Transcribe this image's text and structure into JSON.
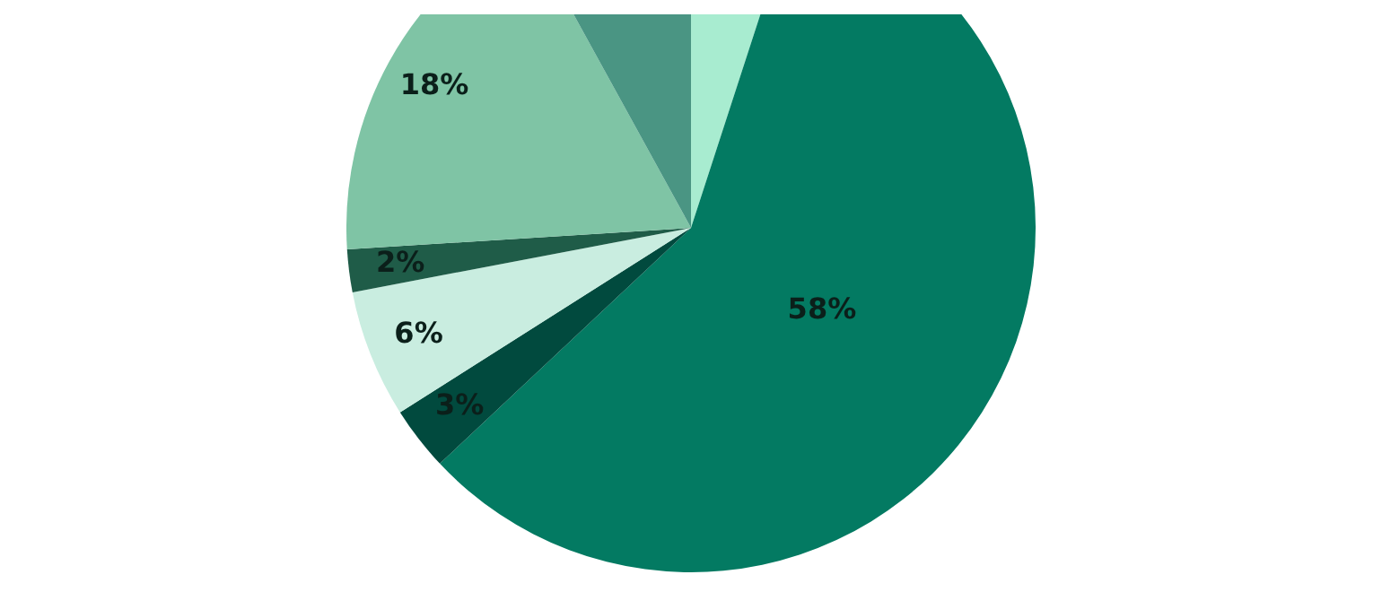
{
  "chart_data": {
    "type": "pie",
    "categories": [
      null,
      null,
      null,
      null,
      null,
      null,
      null
    ],
    "values": [
      5,
      58,
      3,
      6,
      2,
      18,
      8
    ],
    "value_labels": [
      null,
      "58%",
      "3%",
      "6%",
      "2%",
      "18%",
      null
    ],
    "colors": [
      "#a8ecd0",
      "#037a62",
      "#014a3e",
      "#c9ede0",
      "#1f5c48",
      "#7fc4a5",
      "#4a9583"
    ]
  }
}
